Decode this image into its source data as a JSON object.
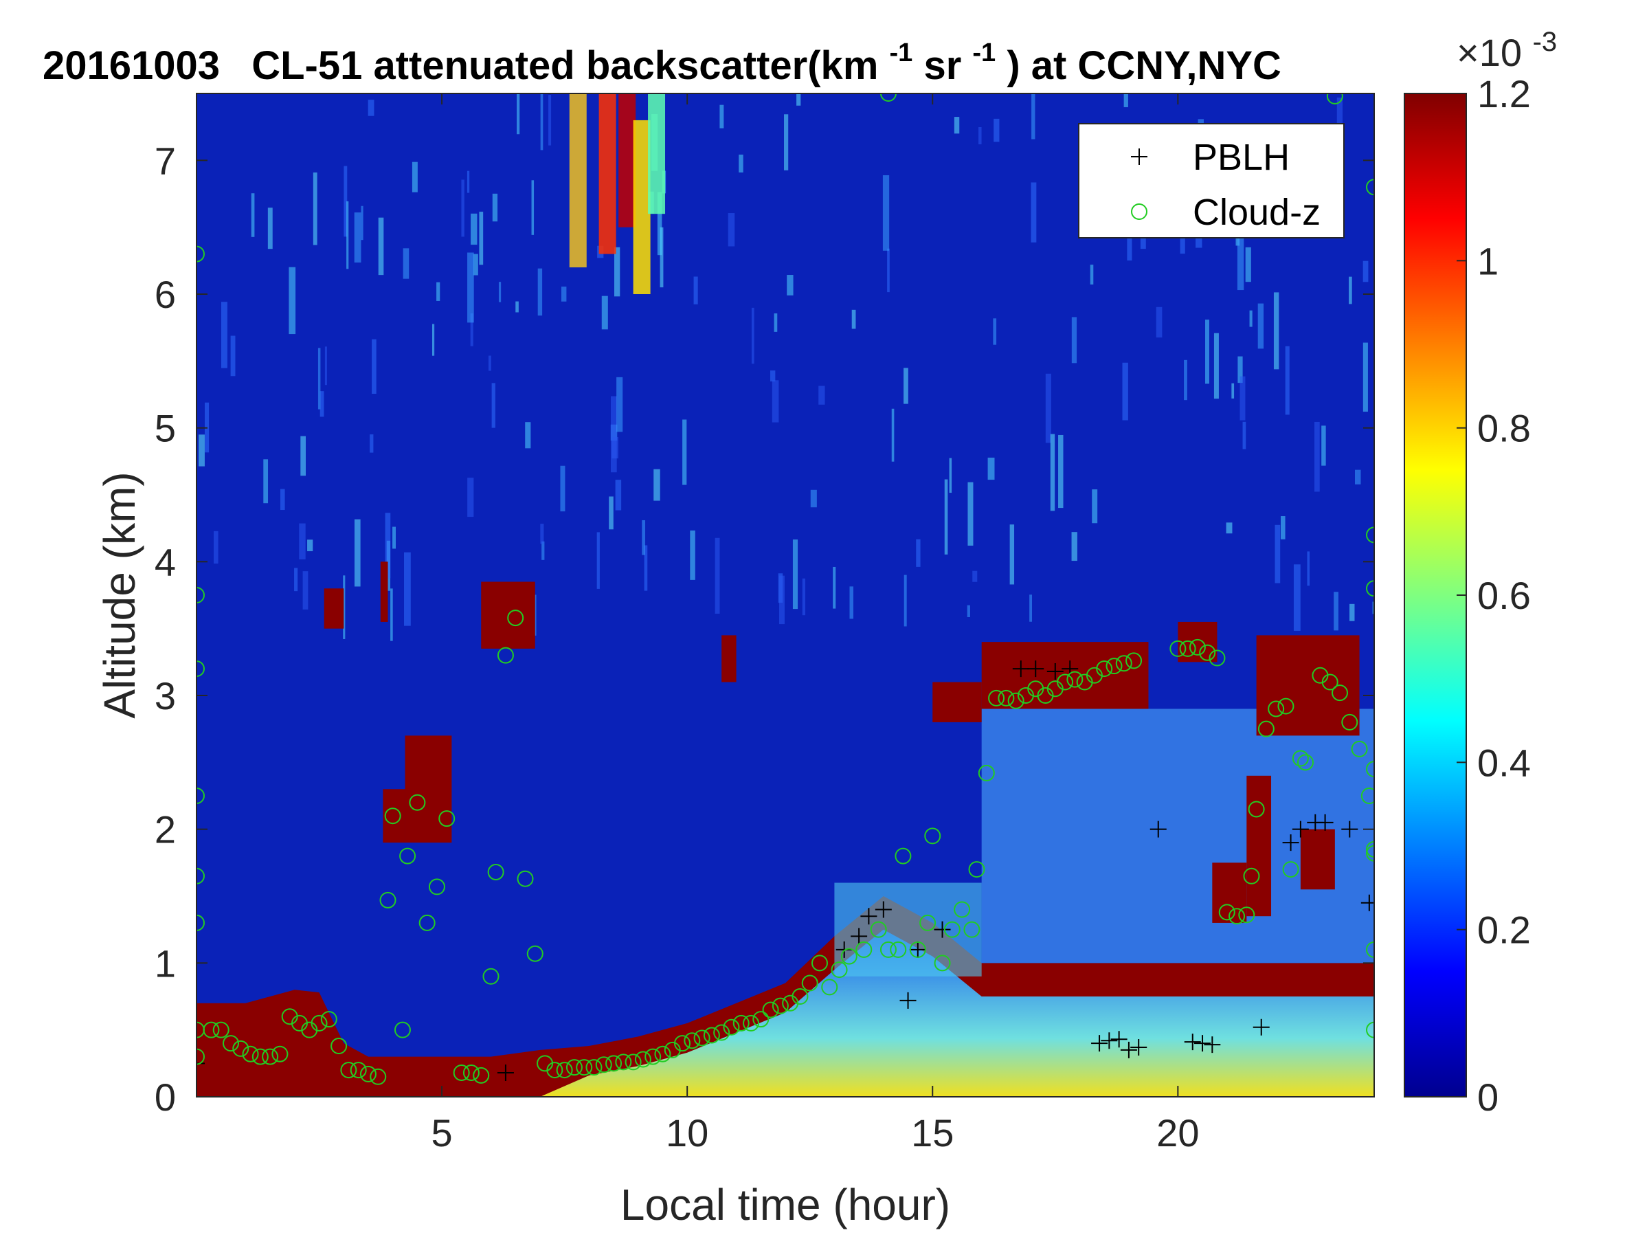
{
  "chart_data": {
    "type": "heatmap",
    "title_parts": {
      "date": "20161003",
      "instrument": "CL-51 attenuated backscatter(km",
      "sup1": "-1",
      "mid": "sr",
      "sup2": "-1",
      "tail": ") at CCNY,NYC"
    },
    "xlabel": "Local time (hour)",
    "ylabel": "Altitude (km)",
    "xlim": [
      0,
      24
    ],
    "ylim": [
      0,
      7.5
    ],
    "xticks": [
      5,
      10,
      15,
      20
    ],
    "yticks": [
      0,
      1,
      2,
      3,
      4,
      5,
      6,
      7
    ],
    "colorbar": {
      "colormap": "jet",
      "range": [
        0,
        1.2
      ],
      "ticks": [
        "0",
        "0.2",
        "0.4",
        "0.6",
        "0.8",
        "1",
        "1.2"
      ],
      "exponent_label": "×10",
      "exponent_sup": "-3"
    },
    "legend": {
      "location": "top-right",
      "entries": [
        {
          "label": "PBLH",
          "marker": "+",
          "color": "#000000"
        },
        {
          "label": "Cloud-z",
          "marker": "o",
          "color": "#22cc22"
        }
      ]
    },
    "boundary_layer_top_km": [
      [
        0.0,
        0.7
      ],
      [
        1.0,
        0.7
      ],
      [
        1.5,
        0.75
      ],
      [
        2.0,
        0.8
      ],
      [
        2.5,
        0.78
      ],
      [
        3.0,
        0.4
      ],
      [
        3.5,
        0.3
      ],
      [
        4.0,
        0.3
      ],
      [
        5.0,
        0.3
      ],
      [
        6.0,
        0.3
      ],
      [
        7.0,
        0.35
      ],
      [
        8.0,
        0.38
      ],
      [
        9.0,
        0.45
      ],
      [
        10.0,
        0.55
      ],
      [
        11.0,
        0.7
      ],
      [
        12.0,
        0.85
      ],
      [
        13.0,
        1.2
      ],
      [
        14.0,
        1.5
      ],
      [
        15.0,
        1.3
      ],
      [
        16.0,
        1.0
      ],
      [
        17.0,
        1.0
      ],
      [
        24.0,
        1.0
      ]
    ],
    "cloud_layers": [
      {
        "t0": 2.6,
        "t1": 3.0,
        "zb": 3.5,
        "zt": 3.8
      },
      {
        "t0": 3.75,
        "t1": 3.9,
        "zb": 3.55,
        "zt": 4.0
      },
      {
        "t0": 5.8,
        "t1": 6.9,
        "zb": 3.35,
        "zt": 3.85
      },
      {
        "t0": 10.7,
        "t1": 11.0,
        "zb": 3.1,
        "zt": 3.45
      },
      {
        "t0": 3.8,
        "t1": 4.25,
        "zb": 1.9,
        "zt": 2.3
      },
      {
        "t0": 4.25,
        "t1": 5.2,
        "zb": 1.9,
        "zt": 2.7
      },
      {
        "t0": 15.0,
        "t1": 16.0,
        "zb": 2.8,
        "zt": 3.1
      },
      {
        "t0": 16.0,
        "t1": 19.4,
        "zb": 2.9,
        "zt": 3.4
      },
      {
        "t0": 20.0,
        "t1": 20.8,
        "zb": 3.25,
        "zt": 3.55
      },
      {
        "t0": 21.6,
        "t1": 23.7,
        "zb": 2.7,
        "zt": 3.45
      },
      {
        "t0": 20.7,
        "t1": 21.4,
        "zb": 1.3,
        "zt": 1.75
      },
      {
        "t0": 21.4,
        "t1": 21.9,
        "zb": 1.35,
        "zt": 2.4
      },
      {
        "t0": 22.5,
        "t1": 23.2,
        "zb": 1.55,
        "zt": 2.0
      }
    ],
    "series": [
      {
        "name": "PBLH",
        "points": [
          [
            0.0,
            0.25
          ],
          [
            6.3,
            0.18
          ],
          [
            13.2,
            1.1
          ],
          [
            13.5,
            1.2
          ],
          [
            13.7,
            1.35
          ],
          [
            14.0,
            1.4
          ],
          [
            14.5,
            0.72
          ],
          [
            14.7,
            1.1
          ],
          [
            15.2,
            1.25
          ],
          [
            16.8,
            3.2
          ],
          [
            17.1,
            3.2
          ],
          [
            17.5,
            3.18
          ],
          [
            17.8,
            3.2
          ],
          [
            18.4,
            0.4
          ],
          [
            18.6,
            0.42
          ],
          [
            18.8,
            0.43
          ],
          [
            19.0,
            0.35
          ],
          [
            19.2,
            0.37
          ],
          [
            19.6,
            2.0
          ],
          [
            20.3,
            0.41
          ],
          [
            20.5,
            0.4
          ],
          [
            20.7,
            0.39
          ],
          [
            21.7,
            0.52
          ],
          [
            22.3,
            1.9
          ],
          [
            22.5,
            2.0
          ],
          [
            22.8,
            2.05
          ],
          [
            23.0,
            2.05
          ],
          [
            23.5,
            2.0
          ],
          [
            23.9,
            1.45
          ]
        ]
      },
      {
        "name": "Cloud-z",
        "points": [
          [
            0.0,
            0.5
          ],
          [
            0.3,
            0.5
          ],
          [
            0.5,
            0.5
          ],
          [
            0.7,
            0.4
          ],
          [
            0.9,
            0.36
          ],
          [
            1.1,
            0.32
          ],
          [
            1.3,
            0.3
          ],
          [
            1.5,
            0.3
          ],
          [
            1.7,
            0.32
          ],
          [
            1.9,
            0.6
          ],
          [
            2.1,
            0.55
          ],
          [
            2.3,
            0.5
          ],
          [
            2.5,
            0.55
          ],
          [
            2.7,
            0.58
          ],
          [
            2.9,
            0.38
          ],
          [
            3.1,
            0.2
          ],
          [
            3.3,
            0.2
          ],
          [
            3.5,
            0.17
          ],
          [
            3.7,
            0.15
          ],
          [
            3.9,
            1.47
          ],
          [
            4.0,
            2.1
          ],
          [
            4.3,
            1.8
          ],
          [
            4.5,
            2.2
          ],
          [
            4.7,
            1.3
          ],
          [
            4.9,
            1.57
          ],
          [
            5.1,
            2.08
          ],
          [
            4.2,
            0.5
          ],
          [
            5.4,
            0.18
          ],
          [
            5.6,
            0.18
          ],
          [
            5.8,
            0.16
          ],
          [
            6.0,
            0.9
          ],
          [
            6.1,
            1.68
          ],
          [
            6.3,
            3.3
          ],
          [
            6.5,
            3.58
          ],
          [
            6.7,
            1.63
          ],
          [
            6.9,
            1.07
          ],
          [
            7.1,
            0.25
          ],
          [
            7.3,
            0.2
          ],
          [
            7.5,
            0.2
          ],
          [
            7.7,
            0.22
          ],
          [
            7.9,
            0.22
          ],
          [
            8.1,
            0.22
          ],
          [
            8.3,
            0.24
          ],
          [
            8.5,
            0.25
          ],
          [
            8.7,
            0.26
          ],
          [
            8.9,
            0.26
          ],
          [
            9.1,
            0.28
          ],
          [
            9.3,
            0.3
          ],
          [
            9.5,
            0.32
          ],
          [
            9.7,
            0.35
          ],
          [
            9.9,
            0.4
          ],
          [
            10.1,
            0.42
          ],
          [
            10.3,
            0.44
          ],
          [
            10.5,
            0.46
          ],
          [
            10.7,
            0.48
          ],
          [
            10.9,
            0.52
          ],
          [
            11.1,
            0.55
          ],
          [
            11.3,
            0.55
          ],
          [
            11.5,
            0.58
          ],
          [
            11.7,
            0.65
          ],
          [
            11.9,
            0.68
          ],
          [
            12.1,
            0.7
          ],
          [
            12.3,
            0.75
          ],
          [
            12.5,
            0.85
          ],
          [
            12.7,
            1.0
          ],
          [
            12.9,
            0.82
          ],
          [
            13.1,
            0.95
          ],
          [
            13.3,
            1.05
          ],
          [
            13.6,
            1.1
          ],
          [
            13.9,
            1.25
          ],
          [
            14.1,
            1.1
          ],
          [
            14.3,
            1.1
          ],
          [
            14.4,
            1.8
          ],
          [
            14.7,
            1.1
          ],
          [
            14.9,
            1.3
          ],
          [
            15.0,
            1.95
          ],
          [
            15.2,
            1.0
          ],
          [
            15.4,
            1.25
          ],
          [
            15.6,
            1.4
          ],
          [
            15.8,
            1.25
          ],
          [
            15.9,
            1.7
          ],
          [
            16.1,
            2.42
          ],
          [
            16.3,
            2.98
          ],
          [
            16.5,
            2.98
          ],
          [
            16.7,
            2.96
          ],
          [
            16.9,
            3.0
          ],
          [
            17.1,
            3.05
          ],
          [
            17.3,
            3.0
          ],
          [
            17.5,
            3.05
          ],
          [
            17.7,
            3.1
          ],
          [
            17.9,
            3.12
          ],
          [
            18.1,
            3.1
          ],
          [
            18.3,
            3.15
          ],
          [
            18.5,
            3.2
          ],
          [
            18.7,
            3.22
          ],
          [
            18.9,
            3.24
          ],
          [
            19.1,
            3.26
          ],
          [
            20.0,
            3.35
          ],
          [
            20.2,
            3.35
          ],
          [
            20.4,
            3.36
          ],
          [
            20.6,
            3.32
          ],
          [
            20.8,
            3.28
          ],
          [
            21.0,
            1.38
          ],
          [
            21.2,
            1.35
          ],
          [
            21.4,
            1.36
          ],
          [
            21.5,
            1.65
          ],
          [
            21.6,
            2.15
          ],
          [
            21.8,
            2.75
          ],
          [
            22.0,
            2.9
          ],
          [
            22.2,
            2.92
          ],
          [
            22.3,
            1.7
          ],
          [
            22.5,
            2.53
          ],
          [
            22.6,
            2.5
          ],
          [
            22.9,
            3.15
          ],
          [
            23.1,
            3.1
          ],
          [
            23.3,
            3.02
          ],
          [
            23.5,
            2.8
          ],
          [
            23.7,
            2.6
          ],
          [
            23.9,
            2.25
          ],
          [
            24.0,
            1.85
          ],
          [
            24.0,
            1.82
          ],
          [
            0.0,
            6.3
          ],
          [
            0.0,
            3.75
          ],
          [
            0.0,
            3.2
          ],
          [
            0.0,
            2.25
          ],
          [
            0.0,
            1.65
          ],
          [
            0.0,
            1.3
          ],
          [
            0.0,
            0.3
          ],
          [
            24.0,
            6.8
          ],
          [
            24.0,
            4.2
          ],
          [
            24.0,
            3.8
          ],
          [
            24.0,
            2.45
          ],
          [
            24.0,
            1.1
          ],
          [
            24.0,
            0.5
          ],
          [
            14.1,
            7.5
          ],
          [
            23.2,
            7.48
          ]
        ]
      }
    ]
  }
}
